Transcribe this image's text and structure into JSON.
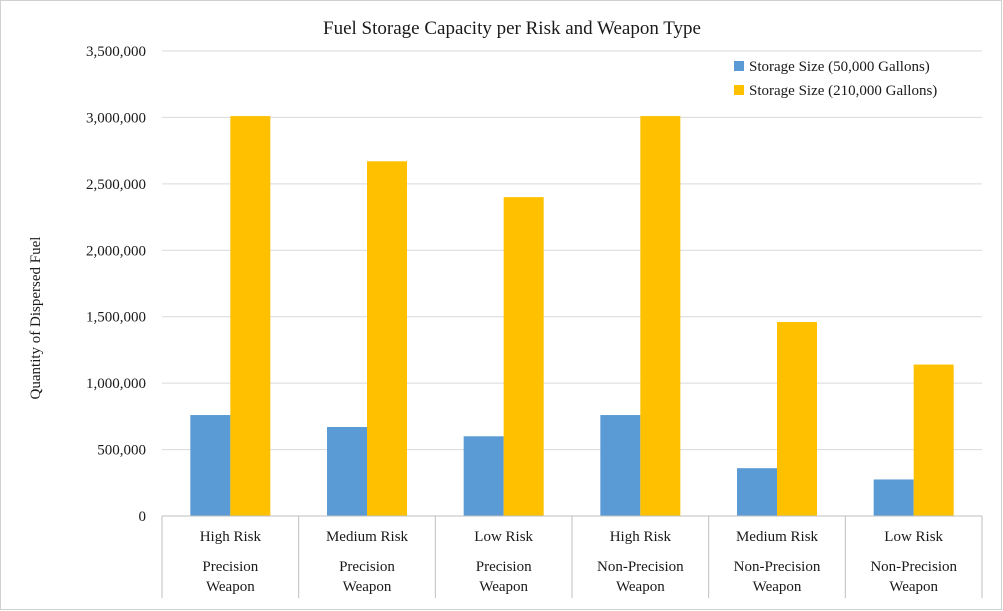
{
  "chart_data": {
    "type": "bar",
    "title": "Fuel Storage Capacity per Risk and Weapon Type",
    "ylabel": "Quantity of Dispersed Fuel",
    "xlabel": "",
    "ylim": [
      0,
      3500000
    ],
    "yticks": [
      0,
      500000,
      1000000,
      1500000,
      2000000,
      2500000,
      3000000,
      3500000
    ],
    "ytick_labels": [
      "0",
      "500,000",
      "1,000,000",
      "1,500,000",
      "2,000,000",
      "2,500,000",
      "3,000,000",
      "3,500,000"
    ],
    "grid": true,
    "legend_position": "top-right",
    "categories": [
      {
        "risk": "High Risk",
        "weapon": [
          "Precision",
          "Weapon"
        ]
      },
      {
        "risk": "Medium Risk",
        "weapon": [
          "Precision",
          "Weapon"
        ]
      },
      {
        "risk": "Low Risk",
        "weapon": [
          "Precision",
          "Weapon"
        ]
      },
      {
        "risk": "High Risk",
        "weapon": [
          "Non-Precision",
          "Weapon"
        ]
      },
      {
        "risk": "Medium Risk",
        "weapon": [
          "Non-Precision",
          "Weapon"
        ]
      },
      {
        "risk": "Low Risk",
        "weapon": [
          "Non-Precision",
          "Weapon"
        ]
      }
    ],
    "series": [
      {
        "name": "Storage Size (50,000 Gallons)",
        "color": "#5b9bd5",
        "values": [
          760000,
          670000,
          600000,
          760000,
          360000,
          275000
        ]
      },
      {
        "name": "Storage Size (210,000 Gallons)",
        "color": "#ffc000",
        "values": [
          3010000,
          2670000,
          2400000,
          3010000,
          1460000,
          1140000
        ]
      }
    ]
  }
}
